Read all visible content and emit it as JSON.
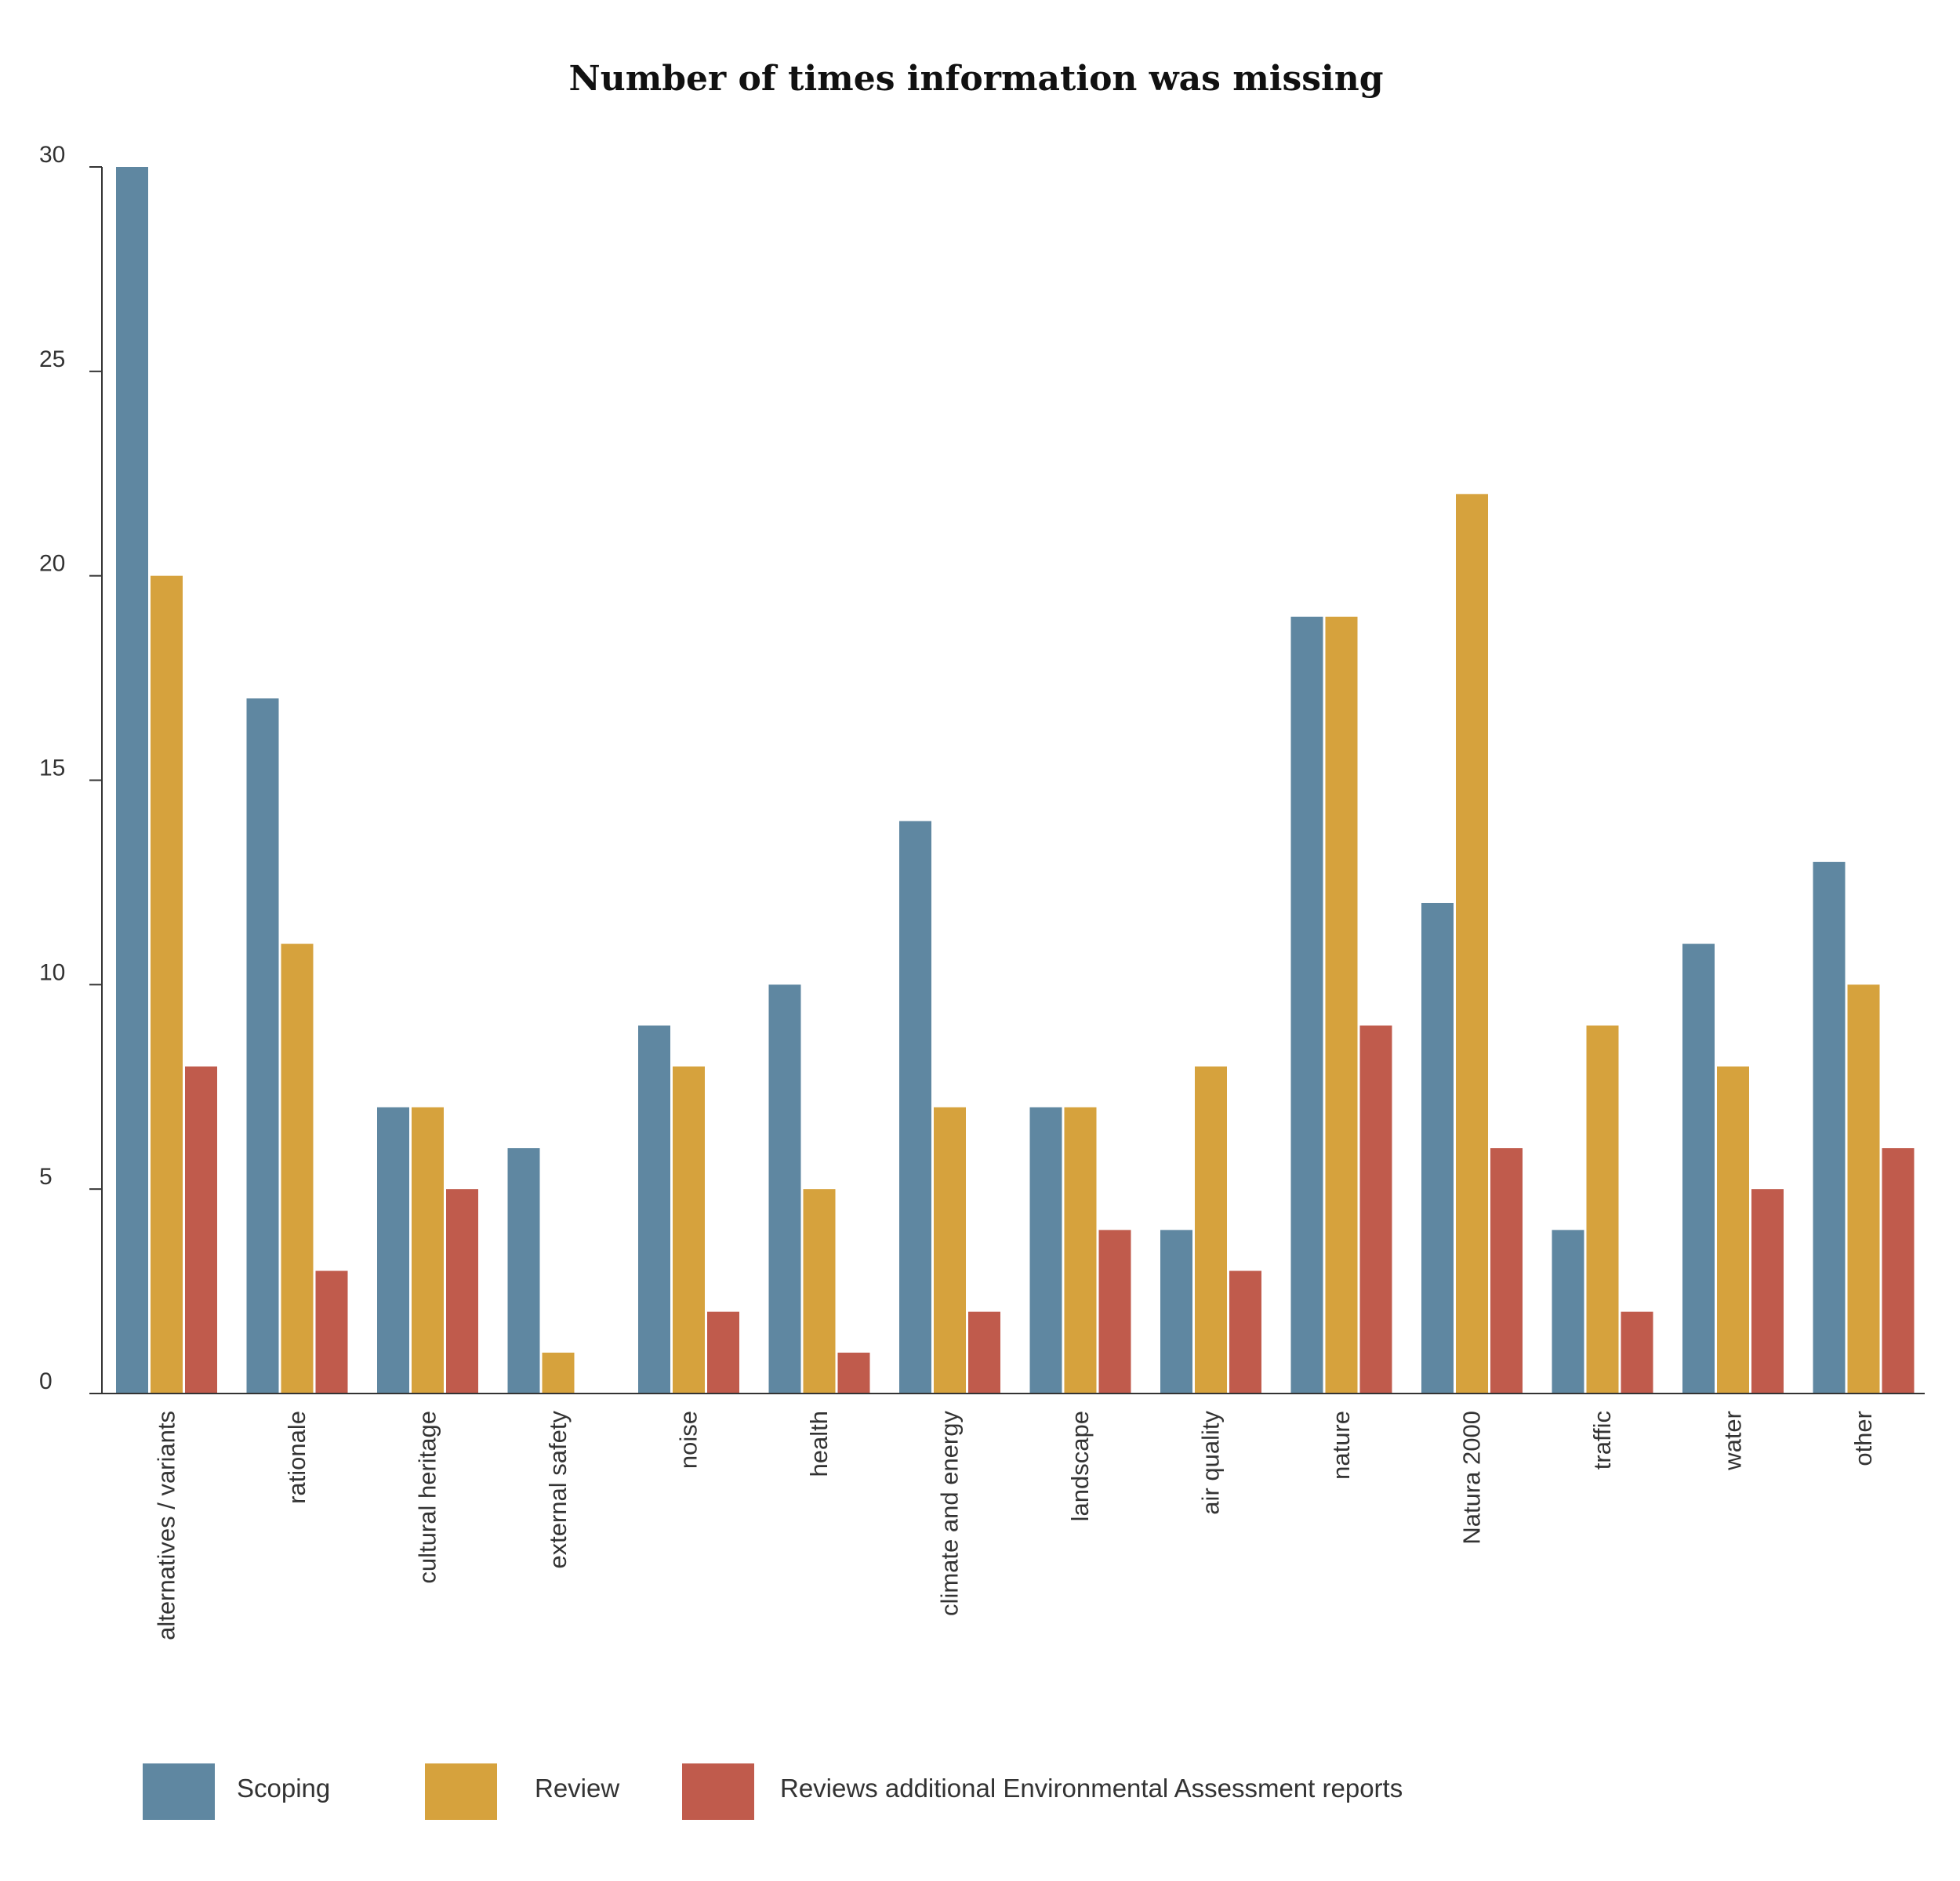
{
  "chart_data": {
    "type": "bar",
    "title": "Number of times information was missing",
    "xlabel": "",
    "ylabel": "",
    "ylim": [
      0,
      30
    ],
    "yticks": [
      0,
      5,
      10,
      15,
      20,
      25,
      30
    ],
    "grid": false,
    "legend_position": "bottom-left",
    "categories": [
      "alternatives / variants",
      "rationale",
      "cultural heritage",
      "external safety",
      "noise",
      "health",
      "climate and energy",
      "landscape",
      "air quality",
      "nature",
      "Natura 2000",
      "traffic",
      "water",
      "other"
    ],
    "series": [
      {
        "name": "Scoping",
        "color": "#5f87a1",
        "values": [
          30,
          17,
          7,
          6,
          9,
          10,
          14,
          7,
          4,
          19,
          12,
          4,
          11,
          13
        ]
      },
      {
        "name": "Review",
        "color": "#d6a23d",
        "values": [
          20,
          11,
          7,
          1,
          8,
          5,
          7,
          7,
          8,
          19,
          22,
          9,
          8,
          10
        ]
      },
      {
        "name": "Reviews additional Environmental Assessment reports",
        "color": "#c05b4c",
        "values": [
          8,
          3,
          5,
          0,
          2,
          1,
          2,
          4,
          3,
          9,
          6,
          2,
          5,
          6
        ]
      }
    ]
  }
}
